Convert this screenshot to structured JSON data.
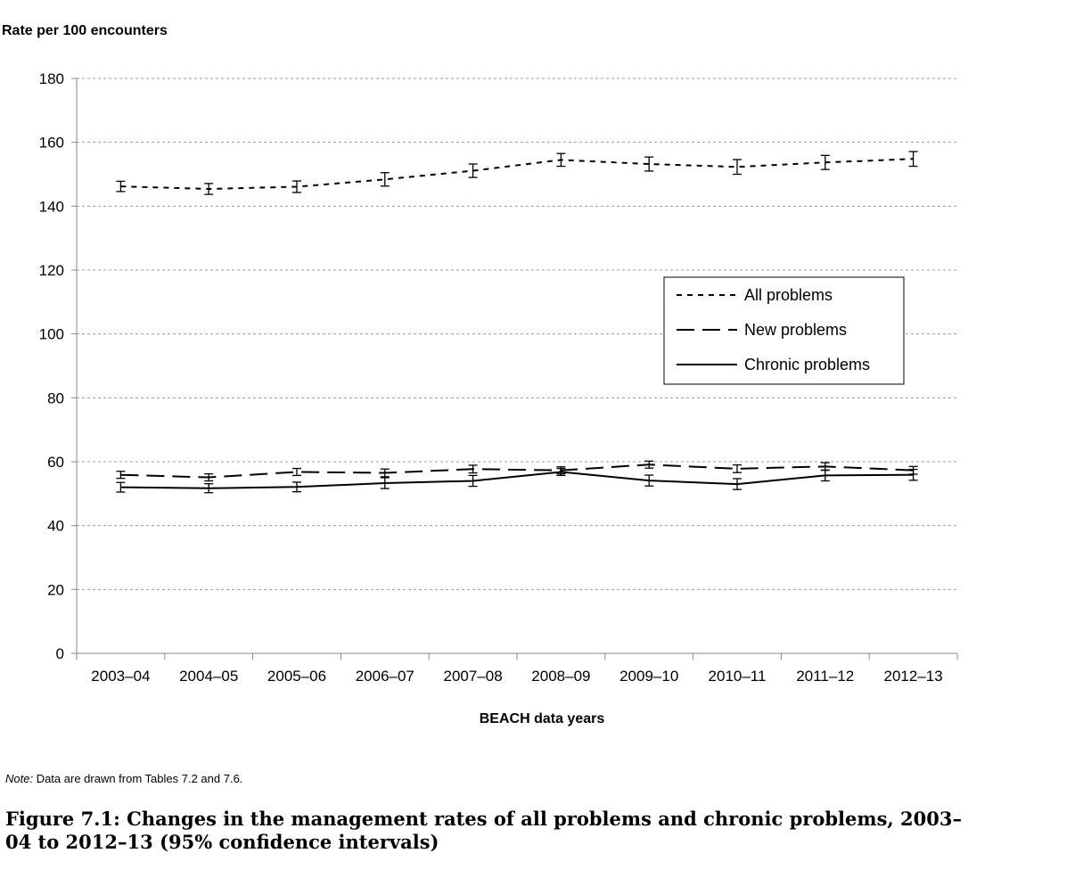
{
  "chart_data": {
    "type": "line",
    "ylabel": "Rate per 100 encounters",
    "xlabel": "BEACH data years",
    "ylim": [
      0,
      180
    ],
    "yticks": [
      0,
      20,
      40,
      60,
      80,
      100,
      120,
      140,
      160,
      180
    ],
    "grid": "horizontal dashed",
    "legend_position": "right-middle",
    "categories": [
      "2003–04",
      "2004–05",
      "2005–06",
      "2006–07",
      "2007–08",
      "2008–09",
      "2009–10",
      "2010–11",
      "2011–12",
      "2012–13"
    ],
    "series": [
      {
        "name": "All problems",
        "style": "short-dash",
        "values": [
          146.2,
          145.4,
          146.1,
          148.4,
          151.1,
          154.5,
          153.2,
          152.3,
          153.7,
          154.8
        ],
        "ci_low": [
          144.6,
          143.7,
          144.3,
          146.3,
          149.0,
          152.5,
          151.0,
          150.0,
          151.5,
          152.5
        ],
        "ci_high": [
          147.8,
          147.1,
          147.9,
          150.5,
          153.2,
          156.5,
          155.4,
          154.6,
          155.9,
          157.1
        ]
      },
      {
        "name": "New problems",
        "style": "long-dash",
        "values": [
          55.9,
          55.1,
          56.8,
          56.5,
          57.7,
          57.3,
          59.1,
          57.8,
          58.5,
          57.3
        ],
        "ci_low": [
          54.8,
          54.0,
          55.7,
          55.3,
          56.5,
          56.2,
          58.0,
          56.6,
          57.3,
          56.1
        ],
        "ci_high": [
          57.0,
          56.2,
          57.9,
          57.7,
          58.9,
          58.4,
          60.2,
          59.0,
          59.7,
          58.5
        ]
      },
      {
        "name": "Chronic problems",
        "style": "solid",
        "values": [
          52.0,
          51.7,
          52.1,
          53.3,
          54.0,
          56.8,
          54.1,
          53.0,
          55.7,
          55.9
        ],
        "ci_low": [
          50.5,
          50.3,
          50.6,
          51.6,
          52.3,
          55.7,
          52.4,
          51.3,
          54.0,
          54.2
        ],
        "ci_high": [
          53.5,
          53.1,
          53.6,
          55.0,
          55.7,
          57.9,
          55.8,
          54.7,
          57.4,
          57.6
        ]
      }
    ]
  },
  "note": {
    "label": "Note:",
    "text": " Data are drawn from Tables 7.2 and 7.6."
  },
  "caption": "Figure 7.1: Changes in the management rates of all problems and chronic problems, 2003–04 to 2012–13 (95% confidence intervals)"
}
